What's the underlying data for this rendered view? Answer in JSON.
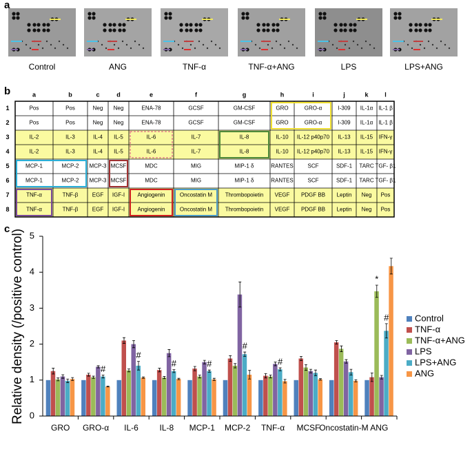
{
  "panel_a": {
    "label": "a",
    "captions": [
      "Control",
      "ANG",
      "TNF-α",
      "TNF-α+ANG",
      "LPS",
      "LPS+ANG"
    ]
  },
  "panel_b": {
    "label": "b",
    "columns": [
      "a",
      "b",
      "c",
      "d",
      "e",
      "f",
      "g",
      "h",
      "i",
      "j",
      "k",
      "l"
    ],
    "rows": [
      {
        "number": 1,
        "cells": [
          "Pos",
          "Pos",
          "Neg",
          "Neg",
          "ENA-78",
          "GCSF",
          "GM-CSF",
          "GRO",
          "GRO-α",
          "I-309",
          "IL-1α",
          "IL-1 β"
        ]
      },
      {
        "number": 2,
        "cells": [
          "Pos",
          "Pos",
          "Neg",
          "Neg",
          "ENA-78",
          "GCSF",
          "GM-CSF",
          "GRO",
          "GRO-α",
          "I-309",
          "IL-1α",
          "IL-1 β"
        ]
      },
      {
        "number": 3,
        "cells": [
          "IL-2",
          "IL-3",
          "IL-4",
          "IL-5",
          "IL-6",
          "IL-7",
          "IL-8",
          "IL-10",
          "IL-12 p40p70",
          "IL-13",
          "IL-15",
          "IFN-γ"
        ]
      },
      {
        "number": 4,
        "cells": [
          "IL-2",
          "IL-3",
          "IL-4",
          "IL-5",
          "IL-6",
          "IL-7",
          "IL-8",
          "IL-10",
          "IL-12 p40p70",
          "IL-13",
          "IL-15",
          "IFN-γ"
        ]
      },
      {
        "number": 5,
        "cells": [
          "MCP-1",
          "MCP-2",
          "MCP-3",
          "MCSF",
          "MDC",
          "MIG",
          "MIP-1 δ",
          "RANTES",
          "SCF",
          "SDF-1",
          "TARC",
          "TGF- β1"
        ]
      },
      {
        "number": 6,
        "cells": [
          "MCP-1",
          "MCP-2",
          "MCP-3",
          "MCSF",
          "MDC",
          "MIG",
          "MIP-1 δ",
          "RANTES",
          "SCF",
          "SDF-1",
          "TARC",
          "TGF- β1"
        ]
      },
      {
        "number": 7,
        "cells": [
          "TNF-α",
          "TNF-β",
          "EGF",
          "IGF-I",
          "Angiogenin",
          "Oncostatin M",
          "Thrombopoietin",
          "VEGF",
          "PDGF BB",
          "Leptin",
          "Neg",
          "Pos"
        ]
      },
      {
        "number": 8,
        "cells": [
          "TNF-α",
          "TNF-β",
          "EGF",
          "IGF-I",
          "Angiogenin",
          "Oncostatin M",
          "Thrombopoietin",
          "VEGF",
          "PDGF BB",
          "Leptin",
          "Neg",
          "Pos"
        ]
      }
    ]
  },
  "chart_data": {
    "type": "bar",
    "label": "c",
    "y_label": "Relative density (/positive control)",
    "categories": [
      "GRO",
      "GRO-α",
      "IL-6",
      "IL-8",
      "MCP-1",
      "MCP-2",
      "TNF-α",
      "MCSF",
      "Oncostatin-M",
      "ANG"
    ],
    "ylim": [
      0,
      5
    ],
    "yticks": [
      0,
      1,
      2,
      3,
      4,
      5
    ],
    "legend": "right",
    "series": [
      {
        "name": "Control",
        "color": "#4f81bd",
        "values": [
          1,
          1,
          1,
          1,
          1,
          1,
          1,
          1,
          1,
          1
        ],
        "errors": [
          0,
          0,
          0,
          0,
          0,
          0,
          0,
          0,
          0,
          0
        ]
      },
      {
        "name": "TNF-α",
        "color": "#c0504d",
        "values": [
          1.25,
          1.15,
          2.1,
          1.28,
          1.32,
          1.6,
          1.12,
          1.6,
          2.05,
          1.08
        ],
        "errors": [
          0.08,
          0.04,
          0.08,
          0.05,
          0.06,
          0.08,
          0.06,
          0.06,
          0.05,
          0.12
        ]
      },
      {
        "name": "TNF-α+ANG",
        "color": "#9bbb59",
        "values": [
          1.02,
          1.08,
          1.27,
          1.07,
          1.1,
          1.4,
          1.1,
          1.35,
          1.87,
          3.47
        ],
        "errors": [
          0.04,
          0.03,
          0.04,
          0.03,
          0.04,
          0.06,
          0.04,
          0.08,
          0.08,
          0.17
        ]
      },
      {
        "name": "LPS",
        "color": "#8064a2",
        "values": [
          1.1,
          1.37,
          2.0,
          1.75,
          1.5,
          3.38,
          1.45,
          1.25,
          1.52,
          1.08
        ],
        "errors": [
          0.05,
          0.03,
          0.1,
          0.1,
          0.05,
          0.35,
          0.05,
          0.05,
          0.05,
          0.05
        ]
      },
      {
        "name": "LPS+ANG",
        "color": "#4bacc6",
        "values": [
          0.98,
          1.1,
          1.4,
          1.25,
          1.25,
          1.72,
          1.3,
          1.2,
          1.22,
          2.37
        ],
        "errors": [
          0.05,
          0.04,
          0.12,
          0.04,
          0.03,
          0.06,
          0.04,
          0.08,
          0.08,
          0.2
        ]
      },
      {
        "name": "ANG",
        "color": "#f79646",
        "values": [
          1.03,
          0.82,
          1.07,
          1.03,
          1.02,
          1.15,
          0.97,
          1.02,
          0.98,
          4.17
        ],
        "errors": [
          0.04,
          0.01,
          0.02,
          0.02,
          0.03,
          0.12,
          0.05,
          0.02,
          0.03,
          0.22
        ]
      }
    ],
    "marks": [
      {
        "series": "TNF-α+ANG",
        "texts": [
          null,
          null,
          null,
          null,
          null,
          null,
          null,
          null,
          null,
          "*"
        ]
      },
      {
        "series": "LPS+ANG",
        "texts": [
          null,
          "#",
          "#",
          "#",
          "#",
          "#",
          "#",
          null,
          null,
          "#"
        ]
      }
    ]
  }
}
